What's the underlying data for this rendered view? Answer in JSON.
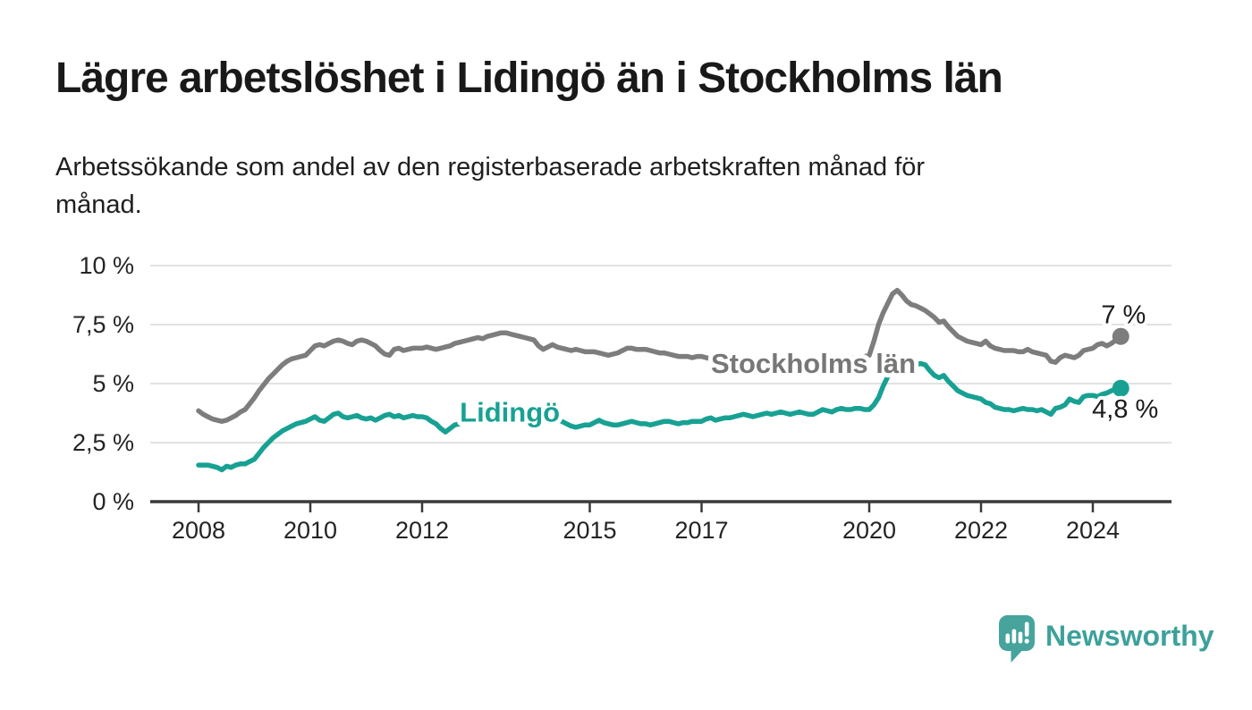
{
  "header": {
    "title": "Lägre arbetslöshet i Lidingö än i Stockholms län",
    "subtitle_line1": "Arbetssökande som andel av den registerbaserade arbetskraften månad för",
    "subtitle_line2": "månad."
  },
  "brand": {
    "label": "Newsworthy",
    "logo_icon": "speech-bubble-bar-chart",
    "color": "#3da19a",
    "logo_fill": "#46a49d"
  },
  "chart_data": {
    "type": "line",
    "title": "Lägre arbetslöshet i Lidingö än i Stockholms län",
    "subtitle": "Arbetssökande som andel av den registerbaserade arbetskraften månad för månad.",
    "unit": "%",
    "x_start_year": 2008,
    "x_step": "monthly",
    "x_end_label_years": 2024.5,
    "ylim": [
      0,
      10
    ],
    "xlim_years": [
      2007.15,
      2025.4
    ],
    "grid": true,
    "legend_position": "inline-labels",
    "style": {
      "grid_color": "#d9d9d9",
      "axis_color": "#3a3a3a",
      "tick_label_color": "#242424",
      "annotation_color": "#1a1a1a",
      "background": "#ffffff"
    },
    "yticks": [
      {
        "value": 0,
        "label": "0 %"
      },
      {
        "value": 2.5,
        "label": "2,5 %"
      },
      {
        "value": 5,
        "label": "5 %"
      },
      {
        "value": 7.5,
        "label": "7,5 %"
      },
      {
        "value": 10,
        "label": "10 %"
      }
    ],
    "xticks": [
      {
        "value": 2008,
        "label": "2008"
      },
      {
        "value": 2010,
        "label": "2010"
      },
      {
        "value": 2012,
        "label": "2012"
      },
      {
        "value": 2015,
        "label": "2015"
      },
      {
        "value": 2017,
        "label": "2017"
      },
      {
        "value": 2020,
        "label": "2020"
      },
      {
        "value": 2022,
        "label": "2022"
      },
      {
        "value": 2024,
        "label": "2024"
      }
    ],
    "series": [
      {
        "name": "Stockholms län",
        "color": "#7d7d7d",
        "label_color": "#777777",
        "end_dot": true,
        "line_label": {
          "year": 2019.0,
          "value": 5.87
        },
        "end_annotation": {
          "text": "7 %",
          "year": 2024.55,
          "value": 7.93
        },
        "values": [
          3.85,
          3.7,
          3.6,
          3.5,
          3.45,
          3.4,
          3.45,
          3.55,
          3.65,
          3.8,
          3.9,
          4.15,
          4.4,
          4.7,
          4.95,
          5.2,
          5.4,
          5.6,
          5.8,
          5.95,
          6.05,
          6.1,
          6.15,
          6.2,
          6.4,
          6.6,
          6.65,
          6.6,
          6.7,
          6.8,
          6.85,
          6.8,
          6.7,
          6.65,
          6.8,
          6.85,
          6.8,
          6.7,
          6.6,
          6.4,
          6.25,
          6.2,
          6.45,
          6.5,
          6.4,
          6.45,
          6.5,
          6.5,
          6.5,
          6.55,
          6.5,
          6.45,
          6.5,
          6.55,
          6.6,
          6.7,
          6.75,
          6.8,
          6.85,
          6.9,
          6.95,
          6.9,
          7.0,
          7.05,
          7.1,
          7.15,
          7.15,
          7.1,
          7.05,
          7.0,
          6.95,
          6.9,
          6.85,
          6.6,
          6.45,
          6.55,
          6.65,
          6.55,
          6.5,
          6.45,
          6.4,
          6.45,
          6.4,
          6.35,
          6.35,
          6.35,
          6.3,
          6.25,
          6.2,
          6.25,
          6.3,
          6.4,
          6.5,
          6.5,
          6.45,
          6.45,
          6.45,
          6.4,
          6.35,
          6.3,
          6.3,
          6.25,
          6.2,
          6.15,
          6.15,
          6.15,
          6.1,
          6.15,
          6.15,
          6.1,
          6.05,
          6.1,
          6.05,
          6.0,
          6.0,
          5.95,
          5.95,
          5.9,
          5.9,
          5.9,
          5.9,
          5.85,
          5.8,
          5.8,
          5.75,
          5.75,
          5.8,
          5.8,
          5.85,
          5.85,
          5.9,
          5.9,
          5.9,
          5.9,
          5.95,
          5.95,
          6.0,
          6.0,
          6.0,
          6.05,
          6.05,
          6.1,
          6.1,
          6.15,
          6.2,
          6.8,
          7.5,
          8.0,
          8.4,
          8.8,
          8.95,
          8.75,
          8.5,
          8.35,
          8.3,
          8.2,
          8.1,
          7.95,
          7.8,
          7.6,
          7.65,
          7.4,
          7.2,
          7.0,
          6.9,
          6.8,
          6.75,
          6.7,
          6.65,
          6.8,
          6.6,
          6.5,
          6.45,
          6.4,
          6.4,
          6.4,
          6.35,
          6.35,
          6.45,
          6.35,
          6.3,
          6.25,
          6.2,
          5.95,
          5.9,
          6.1,
          6.2,
          6.15,
          6.1,
          6.2,
          6.4,
          6.45,
          6.5,
          6.65,
          6.7,
          6.6,
          6.7,
          6.85,
          7.0
        ]
      },
      {
        "name": "Lidingö",
        "color": "#18a193",
        "label_color": "#18a193",
        "end_dot": true,
        "line_label": {
          "year": 2013.57,
          "value": 3.8
        },
        "end_annotation": {
          "text": "4,8 %",
          "year": 2024.58,
          "value": 3.93
        },
        "values": [
          1.55,
          1.55,
          1.55,
          1.5,
          1.45,
          1.35,
          1.5,
          1.45,
          1.55,
          1.6,
          1.6,
          1.7,
          1.8,
          2.05,
          2.3,
          2.5,
          2.7,
          2.85,
          3.0,
          3.1,
          3.2,
          3.3,
          3.35,
          3.4,
          3.5,
          3.6,
          3.45,
          3.4,
          3.55,
          3.7,
          3.75,
          3.6,
          3.55,
          3.6,
          3.65,
          3.55,
          3.5,
          3.55,
          3.45,
          3.55,
          3.65,
          3.7,
          3.6,
          3.65,
          3.55,
          3.6,
          3.65,
          3.6,
          3.6,
          3.55,
          3.4,
          3.3,
          3.1,
          2.95,
          3.1,
          3.25,
          3.3,
          3.35,
          3.35,
          3.4,
          3.4,
          3.4,
          3.45,
          3.45,
          3.5,
          3.5,
          3.5,
          3.45,
          3.45,
          3.4,
          3.4,
          3.4,
          3.4,
          3.45,
          3.45,
          3.5,
          3.5,
          3.45,
          3.4,
          3.3,
          3.2,
          3.15,
          3.2,
          3.25,
          3.25,
          3.35,
          3.45,
          3.35,
          3.3,
          3.25,
          3.25,
          3.3,
          3.35,
          3.4,
          3.35,
          3.3,
          3.3,
          3.25,
          3.3,
          3.35,
          3.4,
          3.4,
          3.35,
          3.3,
          3.35,
          3.35,
          3.4,
          3.4,
          3.4,
          3.5,
          3.55,
          3.45,
          3.5,
          3.55,
          3.55,
          3.6,
          3.65,
          3.7,
          3.65,
          3.6,
          3.65,
          3.7,
          3.75,
          3.7,
          3.75,
          3.8,
          3.75,
          3.7,
          3.75,
          3.8,
          3.75,
          3.7,
          3.7,
          3.8,
          3.9,
          3.85,
          3.8,
          3.9,
          3.95,
          3.9,
          3.9,
          3.95,
          3.95,
          3.9,
          3.9,
          4.1,
          4.4,
          4.9,
          5.3,
          5.5,
          5.6,
          5.7,
          5.75,
          5.85,
          5.8,
          5.85,
          5.8,
          5.55,
          5.35,
          5.25,
          5.35,
          5.1,
          4.9,
          4.7,
          4.6,
          4.5,
          4.45,
          4.4,
          4.35,
          4.2,
          4.15,
          4.0,
          3.95,
          3.9,
          3.9,
          3.85,
          3.9,
          3.95,
          3.9,
          3.9,
          3.85,
          3.9,
          3.8,
          3.7,
          3.95,
          4.0,
          4.1,
          4.35,
          4.25,
          4.2,
          4.45,
          4.5,
          4.5,
          4.45,
          4.55,
          4.6,
          4.7,
          4.75,
          4.8
        ]
      }
    ]
  }
}
